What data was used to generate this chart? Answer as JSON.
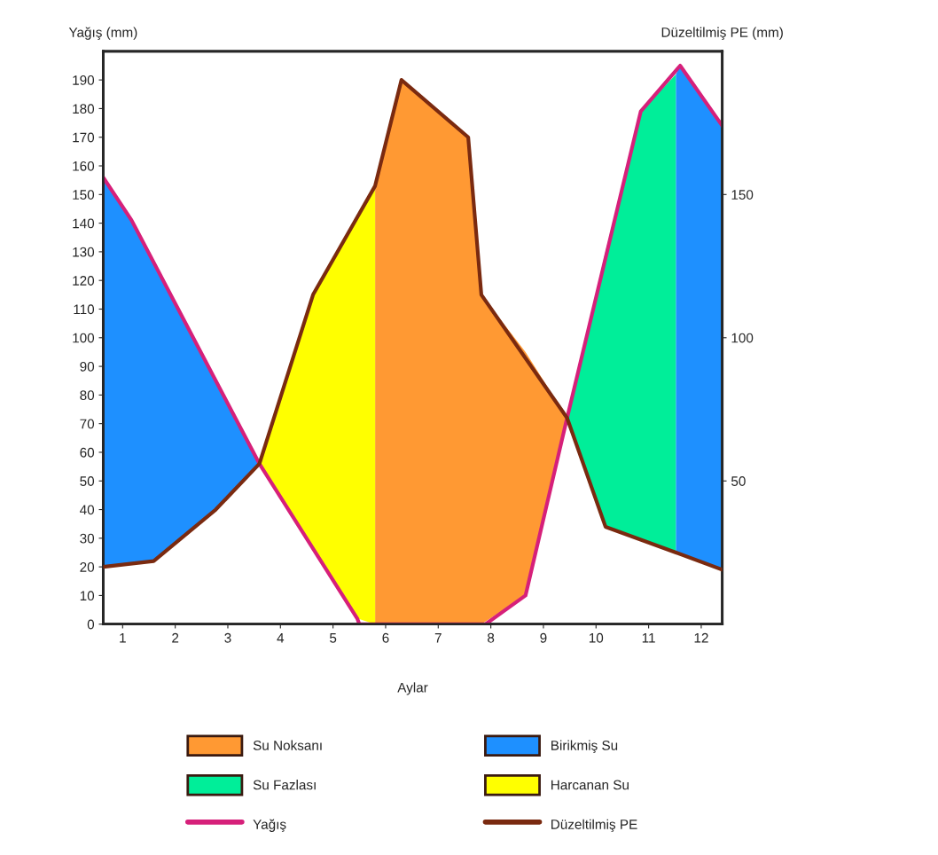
{
  "chart_data": {
    "type": "area",
    "ylabel": "Yağış (mm)",
    "y2label": "Düzeltilmiş PE (mm)",
    "xlabel": "Aylar",
    "xlim": [
      0.63,
      12.4
    ],
    "xticks": [
      1,
      2,
      3,
      4,
      5,
      6,
      7,
      8,
      9,
      10,
      11,
      12
    ],
    "ylim": [
      0,
      200
    ],
    "yticks": [
      0,
      10,
      20,
      30,
      40,
      50,
      60,
      70,
      80,
      90,
      100,
      110,
      120,
      130,
      140,
      150,
      160,
      170,
      180,
      190
    ],
    "y2lim": [
      0,
      200
    ],
    "y2ticks": [
      50,
      100,
      150
    ],
    "grid": false,
    "legend": "bottom",
    "marker": "none",
    "line_style": "solid",
    "series": [
      {
        "name": "Su Noksanı",
        "color": "#ff9933",
        "x": [
          5.8,
          6.3,
          7.57,
          7.82,
          8.66,
          9.45
        ],
        "values": [
          153,
          190,
          170,
          115,
          95,
          72
        ]
      },
      {
        "name": "Su Fazlası",
        "color": "#00ee99",
        "x": [
          9.45,
          10.18,
          10.85,
          11.52
        ],
        "values": [
          72,
          130,
          179,
          192
        ]
      },
      {
        "type": "line",
        "name": "Yağış",
        "color": "#d6207a",
        "x": [
          0.63,
          1.17,
          3.6,
          5.46,
          5.5,
          7.9,
          8.66,
          9.45,
          10.85,
          11.6,
          12.4
        ],
        "values": [
          156,
          141,
          56,
          2,
          0,
          0,
          10,
          72,
          179,
          195,
          174
        ]
      },
      {
        "name": "Birikmiş Su",
        "color": "#1e90ff",
        "x": [
          0.63,
          1.17,
          1.59,
          2.77,
          3.6
        ],
        "values": [
          156,
          141,
          126,
          85,
          56
        ]
      },
      {
        "name": "Harcanan Su",
        "color": "#ffff00",
        "x": [
          3.6,
          4.62,
          5.46,
          5.8
        ],
        "values": [
          56,
          115,
          143,
          153
        ]
      },
      {
        "type": "line",
        "name": "Düzeltilmiş PE",
        "color": "#7a2a10",
        "axis": "y2",
        "x": [
          0.63,
          1.59,
          2.77,
          3.6,
          4.62,
          5.8,
          6.3,
          7.57,
          7.82,
          9.45,
          10.18,
          11.52,
          12.4
        ],
        "values": [
          20,
          22,
          40,
          56,
          115,
          153,
          190,
          170,
          115,
          72,
          34,
          25,
          19
        ]
      },
      {
        "color": "#1e90ff",
        "x": [
          11.52,
          11.6,
          12.4
        ],
        "values": [
          192,
          195,
          174
        ]
      }
    ]
  }
}
